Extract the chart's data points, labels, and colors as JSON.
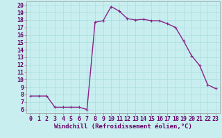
{
  "x": [
    0,
    1,
    2,
    3,
    4,
    5,
    6,
    7,
    8,
    9,
    10,
    11,
    12,
    13,
    14,
    15,
    16,
    17,
    18,
    19,
    20,
    21,
    22,
    23
  ],
  "y": [
    7.8,
    7.8,
    7.8,
    6.3,
    6.3,
    6.3,
    6.3,
    6.0,
    17.7,
    17.9,
    19.8,
    19.2,
    18.2,
    18.0,
    18.1,
    17.9,
    17.9,
    17.5,
    17.0,
    15.2,
    13.2,
    11.9,
    9.3,
    8.8
  ],
  "line_color": "#882288",
  "marker": "+",
  "marker_size": 3,
  "line_width": 1.0,
  "bg_color": "#c8eef0",
  "grid_color": "#aadddd",
  "xlabel": "Windchill (Refroidissement éolien,°C)",
  "xlabel_fontsize": 6.5,
  "ylim": [
    5.5,
    20.5
  ],
  "xlim": [
    -0.5,
    23.5
  ],
  "yticks": [
    6,
    7,
    8,
    9,
    10,
    11,
    12,
    13,
    14,
    15,
    16,
    17,
    18,
    19,
    20
  ],
  "xticks": [
    0,
    1,
    2,
    3,
    4,
    5,
    6,
    7,
    8,
    9,
    10,
    11,
    12,
    13,
    14,
    15,
    16,
    17,
    18,
    19,
    20,
    21,
    22,
    23
  ],
  "tick_fontsize": 6.0
}
